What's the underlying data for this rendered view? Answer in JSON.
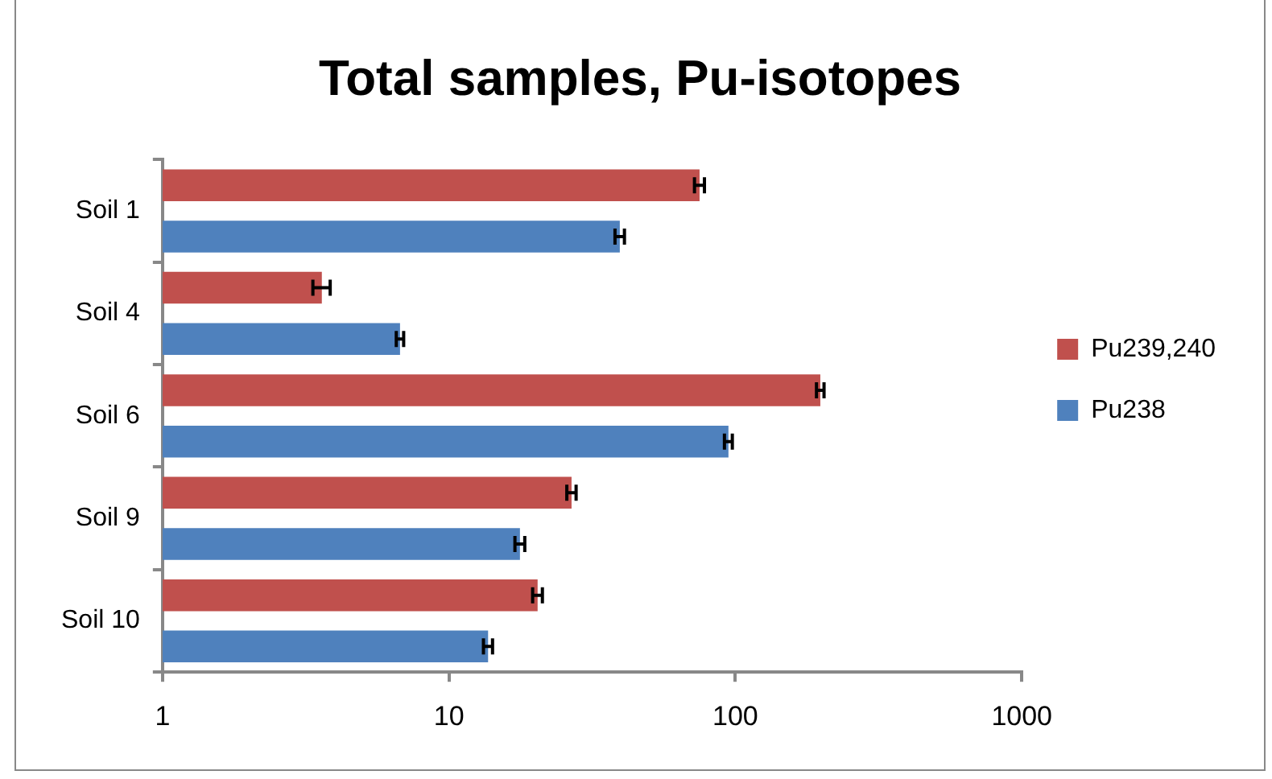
{
  "chart_data": {
    "type": "bar",
    "orientation": "horizontal",
    "title": "Total samples, Pu-isotopes",
    "categories": [
      "Soil 1",
      "Soil 4",
      "Soil 6",
      "Soil 9",
      "Soil 10"
    ],
    "series": [
      {
        "name": "Pu239,240",
        "color": "#c0504d",
        "values": [
          75,
          3.6,
          198,
          26.8,
          20.4
        ],
        "errors": [
          3,
          0.25,
          6,
          1,
          0.8
        ]
      },
      {
        "name": "Pu238",
        "color": "#4f81bd",
        "values": [
          39.5,
          6.75,
          94.6,
          17.7,
          13.7
        ],
        "errors": [
          1.5,
          0.2,
          3,
          0.7,
          0.5
        ]
      }
    ],
    "log": "x",
    "xlim": [
      1,
      1000
    ],
    "xticks": [
      1,
      10,
      100,
      1000
    ],
    "grid": false,
    "legend": "right"
  }
}
